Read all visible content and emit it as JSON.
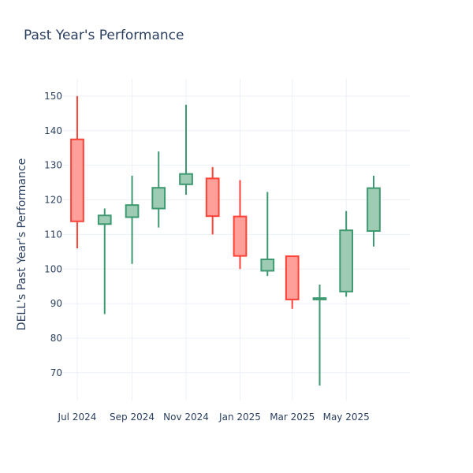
{
  "chart_data": {
    "type": "candlestick",
    "title": "Past Year's Performance",
    "xlabel": "",
    "ylabel": "DELL's Past Year's Performance",
    "ylim": [
      62,
      155
    ],
    "xlim": [
      "2024-06-15",
      "2025-07-12"
    ],
    "grid": true,
    "legend": "none",
    "x_ticks": [
      {
        "date": "2024-07-01",
        "label": "Jul 2024"
      },
      {
        "date": "2024-09-01",
        "label": "Sep 2024"
      },
      {
        "date": "2024-11-01",
        "label": "Nov 2024"
      },
      {
        "date": "2025-01-01",
        "label": "Jan 2025"
      },
      {
        "date": "2025-03-01",
        "label": "Mar 2025"
      },
      {
        "date": "2025-05-01",
        "label": "May 2025"
      }
    ],
    "y_ticks": [
      70,
      80,
      90,
      100,
      110,
      120,
      130,
      140,
      150
    ],
    "colors": {
      "increasing_line": "#3d9970",
      "increasing_fill": "#9ecbb4",
      "decreasing_line": "#ff4136",
      "decreasing_fill": "#ff9f9a",
      "grid": "#ebf0f8",
      "text": "#2a3f5f"
    },
    "candles": [
      {
        "date": "2024-07-01",
        "open": 137.5,
        "high": 150.0,
        "low": 106.0,
        "close": 113.8
      },
      {
        "date": "2024-08-01",
        "open": 113.0,
        "high": 117.5,
        "low": 87.0,
        "close": 115.5
      },
      {
        "date": "2024-09-01",
        "open": 115.0,
        "high": 127.0,
        "low": 101.5,
        "close": 118.5
      },
      {
        "date": "2024-10-01",
        "open": 117.5,
        "high": 134.0,
        "low": 112.0,
        "close": 123.5
      },
      {
        "date": "2024-11-01",
        "open": 124.5,
        "high": 147.5,
        "low": 121.5,
        "close": 127.5
      },
      {
        "date": "2024-12-01",
        "open": 126.2,
        "high": 129.5,
        "low": 110.0,
        "close": 115.3
      },
      {
        "date": "2025-01-01",
        "open": 115.2,
        "high": 125.7,
        "low": 100.0,
        "close": 103.8
      },
      {
        "date": "2025-02-01",
        "open": 99.5,
        "high": 122.3,
        "low": 98.0,
        "close": 102.8
      },
      {
        "date": "2025-03-01",
        "open": 103.7,
        "high": 103.7,
        "low": 88.5,
        "close": 91.2
      },
      {
        "date": "2025-04-01",
        "open": 91.2,
        "high": 95.5,
        "low": 66.3,
        "close": 91.6
      },
      {
        "date": "2025-05-01",
        "open": 93.5,
        "high": 116.8,
        "low": 92.0,
        "close": 111.2
      },
      {
        "date": "2025-06-01",
        "open": 111.0,
        "high": 127.0,
        "low": 106.5,
        "close": 123.4
      }
    ]
  }
}
